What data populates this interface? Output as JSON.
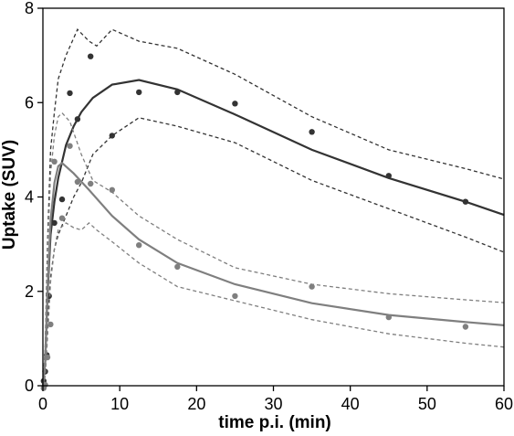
{
  "chart_data": {
    "type": "line",
    "title": "",
    "xlabel": "time p.i. (min)",
    "ylabel": "Uptake (SUV)",
    "xlim": [
      0,
      60
    ],
    "ylim": [
      0,
      8
    ],
    "xticks": [
      0,
      10,
      20,
      30,
      40,
      50,
      60
    ],
    "yticks": [
      0,
      2,
      4,
      6,
      8
    ],
    "grid": false,
    "legend": "none",
    "series": [
      {
        "color": "#333333",
        "fit": {
          "x": [
            0,
            0.3,
            0.6,
            1,
            1.5,
            2,
            3,
            4,
            5,
            6.5,
            9,
            12.5,
            17.5,
            25,
            35,
            45,
            55,
            60
          ],
          "y": [
            0,
            0.5,
            1.9,
            3.2,
            3.9,
            4.4,
            5.1,
            5.5,
            5.8,
            6.1,
            6.38,
            6.48,
            6.28,
            5.75,
            5.0,
            4.4,
            3.9,
            3.62
          ]
        },
        "upper": {
          "x": [
            0,
            0.3,
            0.6,
            1,
            1.5,
            2,
            3,
            4.5,
            6,
            7,
            9,
            12.5,
            17.5,
            25,
            35,
            45,
            55,
            60
          ],
          "y": [
            0,
            0.8,
            3.0,
            5.0,
            5.8,
            6.5,
            7.0,
            7.55,
            7.3,
            7.2,
            7.55,
            7.3,
            7.15,
            6.6,
            5.7,
            5.0,
            4.6,
            4.38
          ]
        },
        "lower": {
          "x": [
            0,
            0.3,
            0.6,
            1,
            1.5,
            2,
            3,
            4,
            5,
            6.5,
            9,
            12.5,
            17.5,
            25,
            35,
            45,
            55,
            60
          ],
          "y": [
            0,
            0.3,
            1.3,
            2.3,
            2.9,
            3.2,
            3.6,
            4.0,
            4.3,
            4.9,
            5.3,
            5.68,
            5.5,
            5.15,
            4.35,
            3.75,
            3.15,
            2.83
          ]
        },
        "points": {
          "x": [
            0.1,
            0.3,
            0.5,
            0.8,
            1.5,
            2.5,
            3.5,
            4.5,
            6.2,
            9,
            12.5,
            17.5,
            25,
            35,
            45,
            55
          ],
          "y": [
            0.1,
            0.3,
            0.65,
            1.9,
            3.45,
            3.95,
            6.2,
            5.65,
            6.98,
            5.3,
            6.22,
            6.22,
            5.98,
            5.38,
            4.45,
            3.9
          ]
        }
      },
      {
        "color": "#7f7f7f",
        "fit": {
          "x": [
            0,
            0.3,
            0.6,
            1,
            1.5,
            2,
            2.5,
            4,
            6,
            9,
            12.5,
            17.5,
            25,
            35,
            45,
            55,
            60
          ],
          "y": [
            0,
            0.5,
            2.0,
            3.5,
            4.3,
            4.65,
            4.72,
            4.5,
            4.15,
            3.6,
            3.1,
            2.6,
            2.15,
            1.75,
            1.5,
            1.35,
            1.28
          ]
        },
        "upper": {
          "x": [
            0,
            0.3,
            0.6,
            1,
            1.5,
            2,
            2.5,
            3.5,
            5,
            6.5,
            9,
            12.5,
            17.5,
            25,
            35,
            45,
            55,
            60
          ],
          "y": [
            0,
            0.8,
            2.8,
            4.5,
            5.3,
            5.7,
            5.78,
            5.6,
            4.9,
            4.35,
            4.1,
            3.6,
            3.1,
            2.5,
            2.15,
            1.95,
            1.82,
            1.76
          ]
        },
        "lower": {
          "x": [
            0,
            0.3,
            0.6,
            1,
            1.5,
            2,
            3,
            4,
            5,
            6,
            7,
            9,
            12.5,
            17.5,
            25,
            35,
            45,
            55,
            60
          ],
          "y": [
            0,
            0.2,
            1.0,
            2.2,
            2.9,
            3.3,
            3.45,
            3.35,
            3.3,
            3.45,
            3.3,
            3.05,
            2.6,
            2.1,
            1.8,
            1.4,
            1.1,
            0.9,
            0.82
          ]
        },
        "points": {
          "x": [
            0.1,
            0.3,
            0.6,
            1,
            1.5,
            2.5,
            3.5,
            4.5,
            6.2,
            9,
            12.5,
            17.5,
            25,
            35,
            45,
            55
          ],
          "y": [
            -0.05,
            0.02,
            0.6,
            1.3,
            4.75,
            3.55,
            5.08,
            4.32,
            4.28,
            4.15,
            2.98,
            2.52,
            1.9,
            2.1,
            1.45,
            1.25
          ]
        }
      }
    ]
  }
}
